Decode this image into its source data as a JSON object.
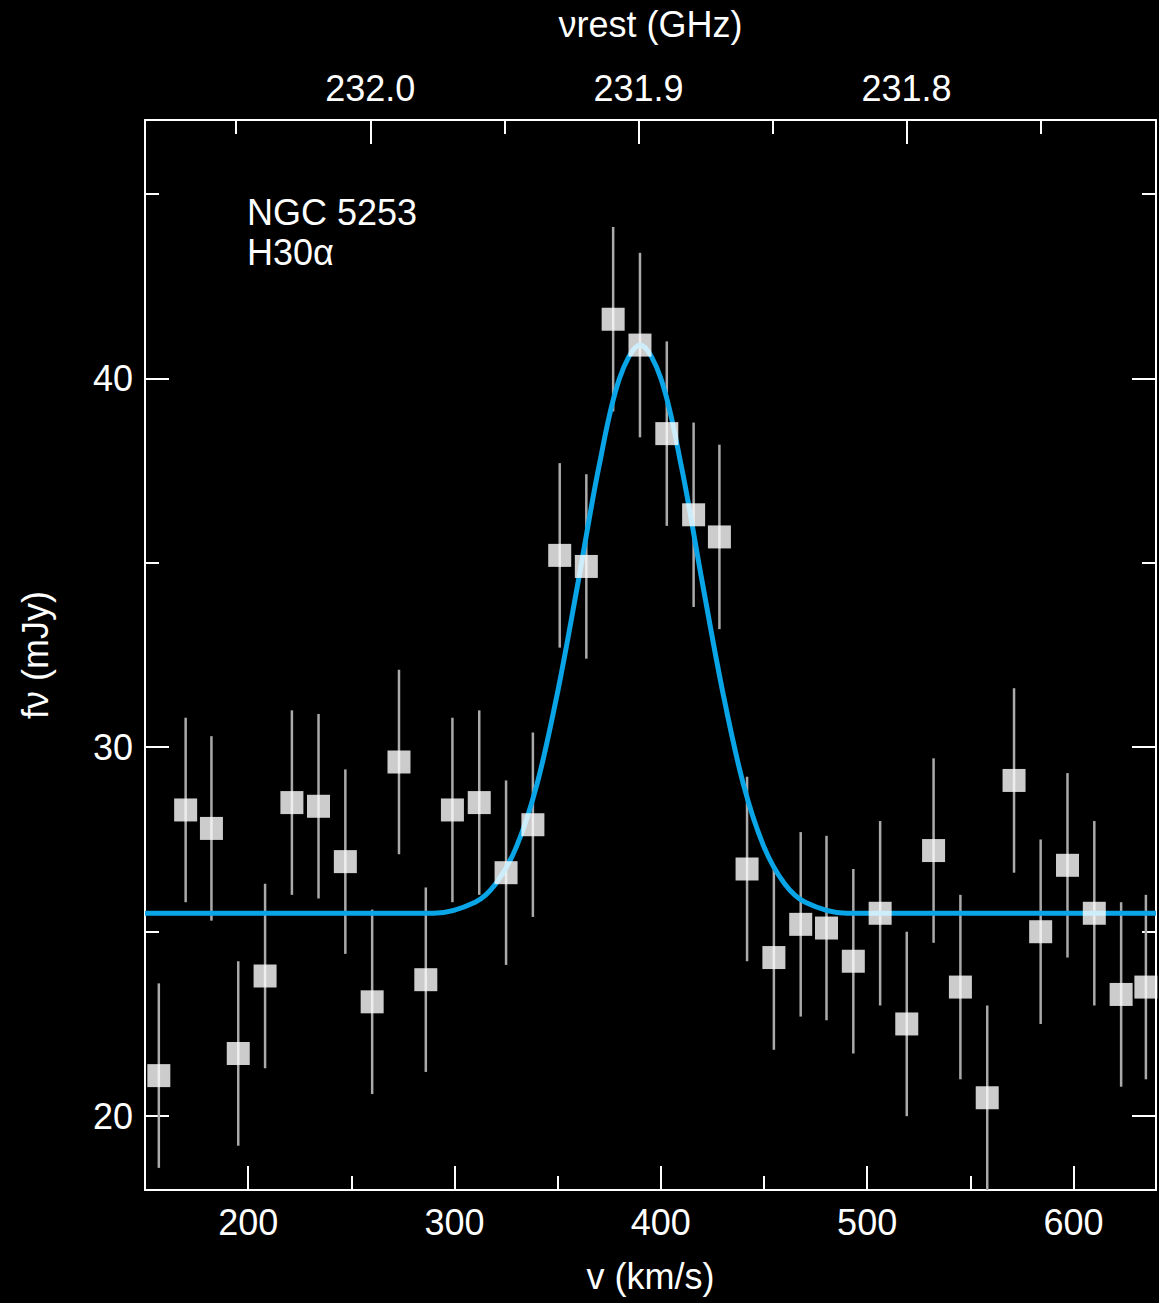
{
  "chart_data": {
    "type": "scatter",
    "annotations": [
      "NGC 5253",
      "H30α"
    ],
    "x_label": "v (km/s)",
    "y_label": "fν (mJy)",
    "x2_label": "νrest (GHz)",
    "xlim": [
      150,
      640
    ],
    "xticks": [
      200,
      300,
      400,
      500,
      600
    ],
    "x2lim": [
      232.084,
      231.707
    ],
    "x2ticks": [
      {
        "value": 232.0,
        "label": "232.0"
      },
      {
        "value": 231.9,
        "label": "231.9"
      },
      {
        "value": 231.8,
        "label": "231.8"
      }
    ],
    "ylim": [
      18,
      47
    ],
    "yticks": [
      20,
      30,
      40
    ],
    "x": [
      156.7,
      169.7,
      182.2,
      195.2,
      208.2,
      221.2,
      234.1,
      247.1,
      260.1,
      273.1,
      286.1,
      299.0,
      312.0,
      325.0,
      338.0,
      351.0,
      363.9,
      376.9,
      389.9,
      402.9,
      415.9,
      428.4,
      441.8,
      454.8,
      467.8,
      480.3,
      493.3,
      506.3,
      519.2,
      532.2,
      545.2,
      558.2,
      571.2,
      584.1,
      597.1,
      610.1,
      623.1,
      635.1
    ],
    "values": [
      21.1,
      28.3,
      27.8,
      21.7,
      23.8,
      28.5,
      28.4,
      26.9,
      23.1,
      29.6,
      23.7,
      28.3,
      28.5,
      26.6,
      27.9,
      35.2,
      34.9,
      41.6,
      40.9,
      38.5,
      36.3,
      35.7,
      26.7,
      24.3,
      25.2,
      25.1,
      24.2,
      25.5,
      22.5,
      27.2,
      23.5,
      20.5,
      29.1,
      25.0,
      26.8,
      25.5,
      23.3,
      23.5
    ],
    "errors": [
      2.5,
      2.5,
      2.5,
      2.5,
      2.5,
      2.5,
      2.5,
      2.5,
      2.5,
      2.5,
      2.5,
      2.5,
      2.5,
      2.5,
      2.5,
      2.5,
      2.5,
      2.5,
      2.5,
      2.5,
      2.5,
      2.5,
      2.5,
      2.5,
      2.5,
      2.5,
      2.5,
      2.5,
      2.5,
      2.5,
      2.5,
      2.5,
      2.5,
      2.5,
      2.5,
      2.5,
      2.5,
      2.5
    ],
    "color": "#ffffff",
    "marker": "square",
    "grid": false,
    "fit": {
      "type": "line",
      "color": "#0aa5e6",
      "x": [
        150,
        290,
        310,
        320,
        330,
        340,
        350,
        360,
        370,
        380,
        390,
        400,
        410,
        420,
        430,
        440,
        450,
        460,
        470,
        490,
        640
      ],
      "values": [
        25.5,
        25.5,
        25.8,
        26.3,
        27.3,
        29.0,
        31.5,
        34.5,
        37.6,
        40.0,
        40.9,
        40.0,
        37.6,
        34.5,
        31.5,
        29.0,
        27.3,
        26.3,
        25.8,
        25.5,
        25.5
      ]
    }
  }
}
